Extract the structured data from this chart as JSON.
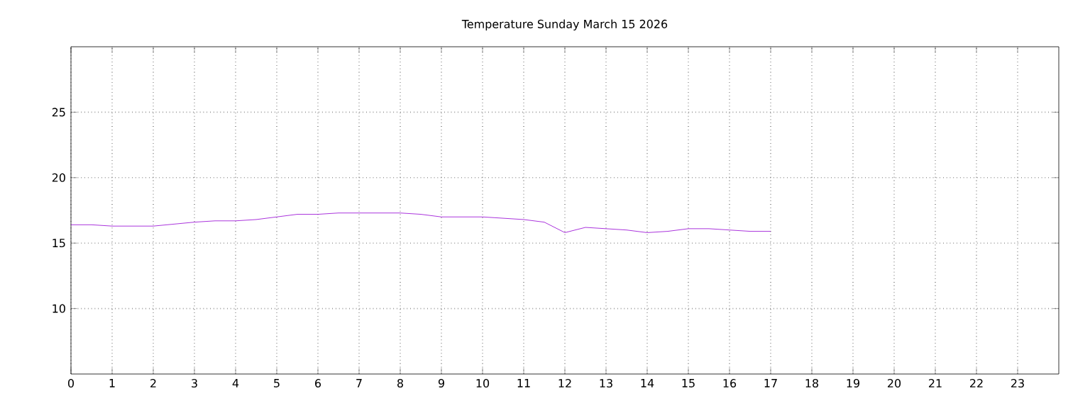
{
  "chart_data": {
    "type": "line",
    "title": "Temperature Sunday March 15 2026",
    "x": [
      0,
      0.5,
      1,
      2,
      3,
      3.5,
      4,
      4.5,
      5,
      5.5,
      6,
      6.5,
      7,
      8,
      8.5,
      9,
      10,
      11,
      11.5,
      12,
      12.5,
      13,
      13.5,
      14,
      14.5,
      15,
      15.5,
      16,
      16.5,
      17
    ],
    "series": [
      {
        "color": "#9400d3",
        "values": [
          16.4,
          16.4,
          16.3,
          16.3,
          16.6,
          16.7,
          16.7,
          16.8,
          17.0,
          17.2,
          17.2,
          17.3,
          17.3,
          17.3,
          17.2,
          17.0,
          17.0,
          16.8,
          16.6,
          15.8,
          16.2,
          16.1,
          16.0,
          15.8,
          15.9,
          16.1,
          16.1,
          16.0,
          15.9,
          15.9
        ]
      }
    ],
    "xlim": [
      0,
      24
    ],
    "xticks": [
      0,
      1,
      2,
      3,
      4,
      5,
      6,
      7,
      8,
      9,
      10,
      11,
      12,
      13,
      14,
      15,
      16,
      17,
      18,
      19,
      20,
      21,
      22,
      23
    ],
    "ylim": [
      5,
      30
    ],
    "yticks": [
      10,
      15,
      20,
      25
    ],
    "grid": true
  }
}
